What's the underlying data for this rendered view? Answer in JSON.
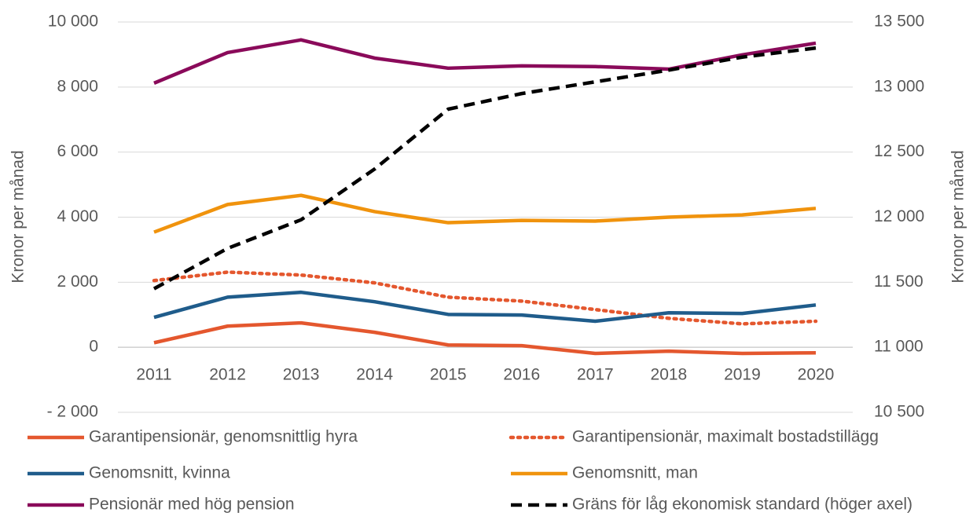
{
  "chart_data": {
    "type": "line",
    "categories": [
      "2011",
      "2012",
      "2013",
      "2014",
      "2015",
      "2016",
      "2017",
      "2018",
      "2019",
      "2020"
    ],
    "ylabel": "Kronor per månad",
    "y2label": "Kronor per månad",
    "ylim": [
      -2000,
      10000
    ],
    "yticks": [
      {
        "value": -2000,
        "label": "- 2 000"
      },
      0,
      {
        "value": 2000,
        "label": "2 000"
      },
      {
        "value": 4000,
        "label": "4 000"
      },
      {
        "value": 6000,
        "label": "6 000"
      },
      {
        "value": 8000,
        "label": "8 000"
      },
      {
        "value": 10000,
        "label": "10 000"
      }
    ],
    "y2lim": [
      10500,
      13500
    ],
    "y2ticks": [
      {
        "value": 10500,
        "label": "10 500"
      },
      {
        "value": 11000,
        "label": "11 000"
      },
      {
        "value": 11500,
        "label": "11 500"
      },
      {
        "value": 12000,
        "label": "12 000"
      },
      {
        "value": 12500,
        "label": "12 500"
      },
      {
        "value": 13000,
        "label": "13 000"
      },
      {
        "value": 13500,
        "label": "13 500"
      }
    ],
    "grid": true,
    "legend": "bottom",
    "series": [
      {
        "name": "Garantipensionär, genomsnittlig hyra",
        "color": "#e4572e",
        "style": "solid",
        "values": [
          140,
          650,
          750,
          460,
          70,
          50,
          -190,
          -120,
          -190,
          -170
        ]
      },
      {
        "name": "Garantipensionär, maximalt bostadstillägg",
        "color": "#e4572e",
        "style": "dotted",
        "values": [
          2050,
          2310,
          2220,
          1980,
          1540,
          1420,
          1160,
          890,
          720,
          800
        ]
      },
      {
        "name": "Genomsnitt, kvinna",
        "color": "#1f5c8b",
        "style": "solid",
        "values": [
          920,
          1540,
          1690,
          1400,
          1010,
          990,
          800,
          1060,
          1040,
          1300
        ]
      },
      {
        "name": "Genomsnitt, man",
        "color": "#f0930d",
        "style": "solid",
        "values": [
          3540,
          4390,
          4670,
          4170,
          3830,
          3900,
          3880,
          4000,
          4070,
          4270
        ]
      },
      {
        "name": "Pensionär med hög pension",
        "color": "#8a0a5a",
        "style": "solid",
        "values": [
          8120,
          9060,
          9450,
          8890,
          8580,
          8650,
          8630,
          8550,
          8990,
          9350
        ]
      },
      {
        "name": "Gräns för låg ekonomisk standard (höger axel)",
        "color": "#000000",
        "style": "dashed",
        "axis": "y2",
        "values": [
          11450,
          11760,
          11980,
          12370,
          12830,
          12950,
          13040,
          13130,
          13230,
          13300
        ]
      }
    ]
  }
}
